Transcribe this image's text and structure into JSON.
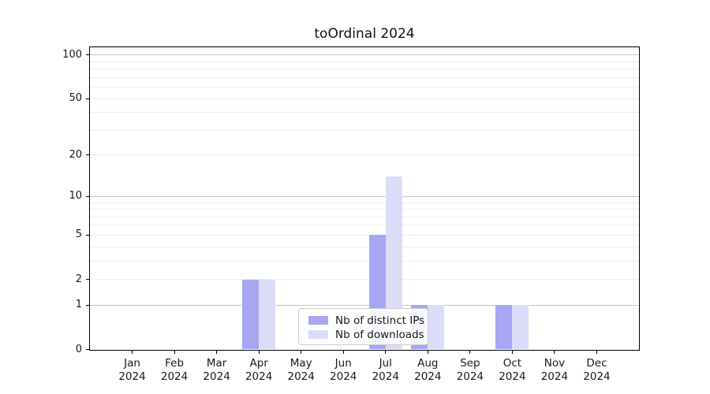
{
  "chart_data": {
    "type": "bar",
    "title": "toOrdinal 2024",
    "categories": [
      "Jan",
      "Feb",
      "Mar",
      "Apr",
      "May",
      "Jun",
      "Jul",
      "Aug",
      "Sep",
      "Oct",
      "Nov",
      "Dec"
    ],
    "year_label": "2024",
    "series": [
      {
        "name": "Nb of distinct IPs",
        "color": "#a6a6f2",
        "values": [
          0,
          0,
          0,
          2,
          0,
          0,
          5,
          1,
          0,
          1,
          0,
          0
        ]
      },
      {
        "name": "Nb of downloads",
        "color": "#dcdcf8",
        "values": [
          0,
          0,
          0,
          2,
          0,
          0,
          14,
          1,
          0,
          1,
          0,
          0
        ]
      }
    ],
    "yscale": "log1p",
    "ylim": [
      0,
      113
    ],
    "yticks": [
      0,
      1,
      2,
      5,
      10,
      20,
      50,
      100
    ],
    "major_gridlines": [
      1,
      10,
      100
    ],
    "minor_gridlines": [
      2,
      3,
      4,
      5,
      6,
      7,
      8,
      9,
      20,
      30,
      40,
      50,
      60,
      70,
      80,
      90
    ],
    "grid": "on",
    "legend_position": "bottom-center",
    "colors": {
      "major_grid": "#c8c8c8",
      "minor_grid": "#ededed",
      "spine": "#000000",
      "background": "#ffffff"
    }
  }
}
